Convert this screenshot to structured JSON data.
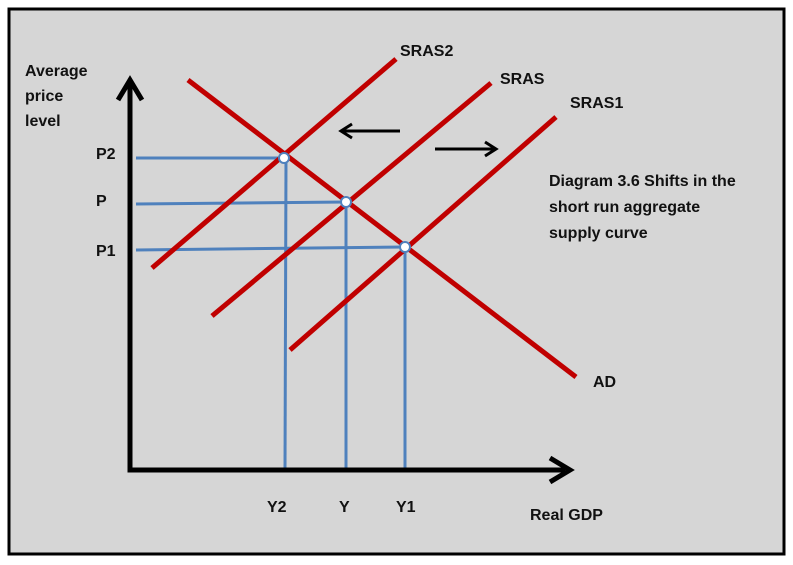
{
  "axes": {
    "y_label": [
      "Average",
      "price",
      "level"
    ],
    "x_label": "Real GDP"
  },
  "curves": [
    {
      "label": "SRAS2"
    },
    {
      "label": "SRAS"
    },
    {
      "label": "SRAS1"
    },
    {
      "label": "AD"
    }
  ],
  "price_levels": [
    "P2",
    "P",
    "P1"
  ],
  "outputs": [
    "Y2",
    "Y",
    "Y1"
  ],
  "caption": [
    "Diagram 3.6 Shifts in the",
    "short run aggregate",
    "supply curve"
  ]
}
